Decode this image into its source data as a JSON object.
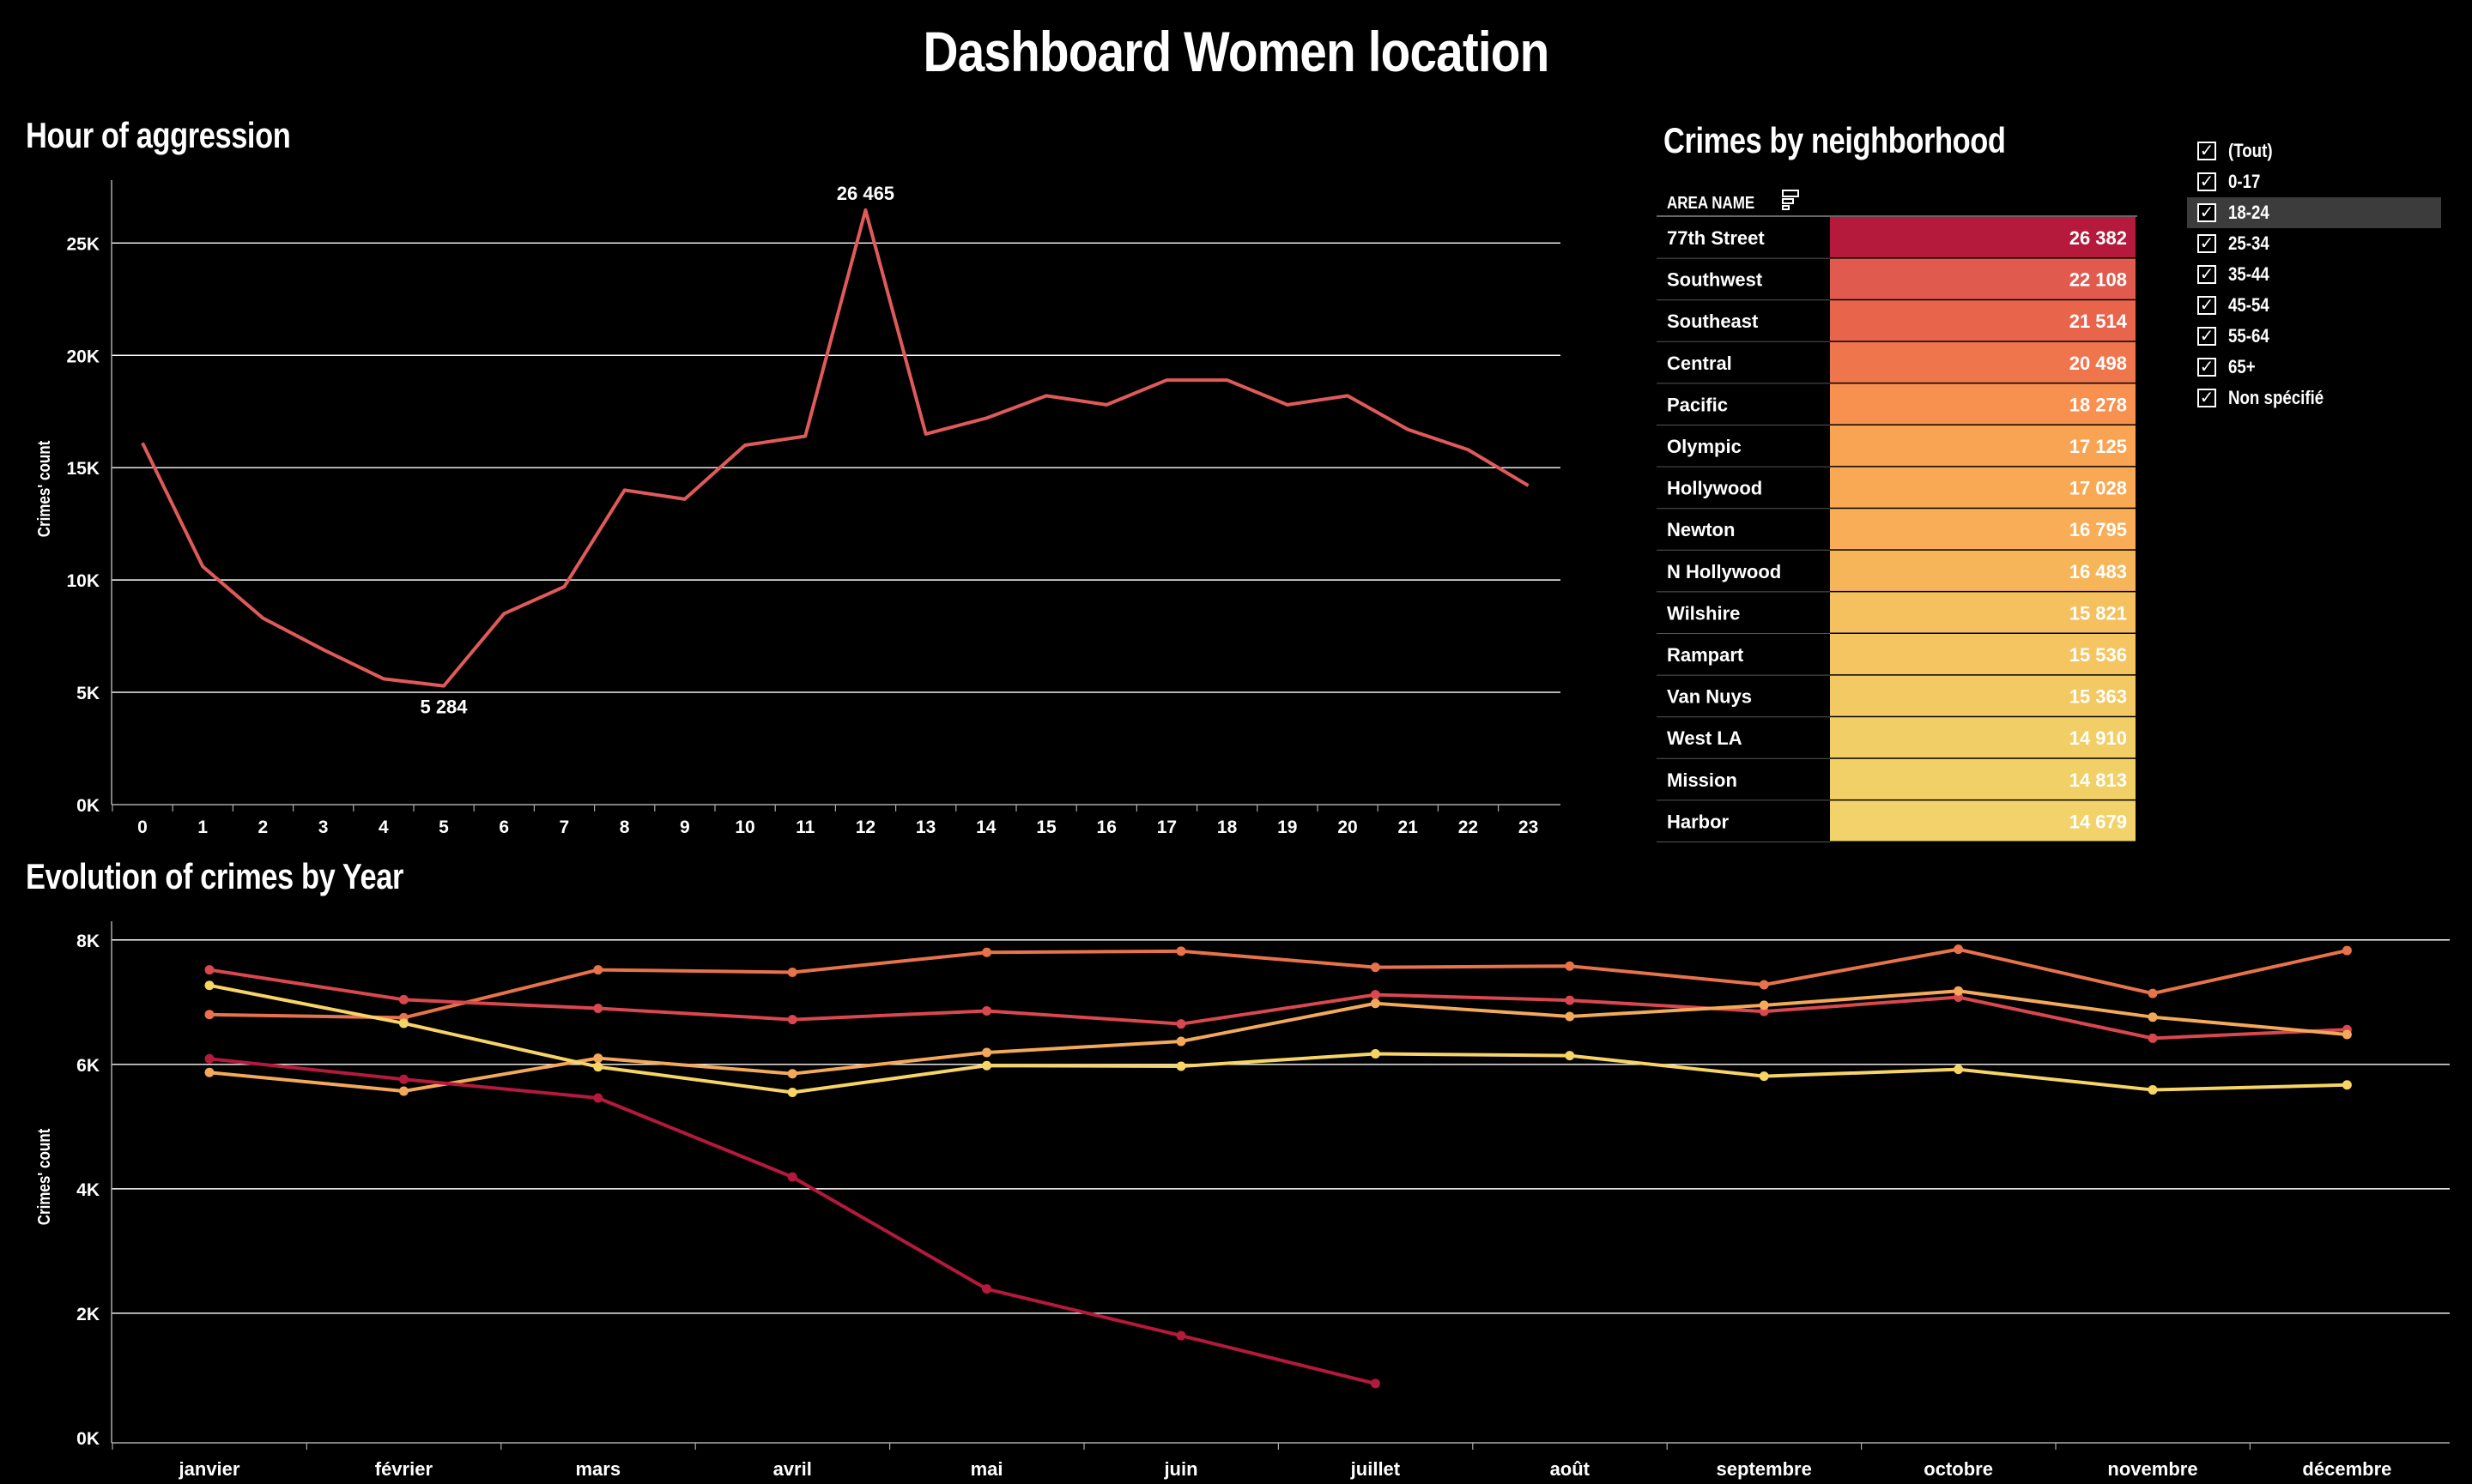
{
  "title": "Dashboard Women location",
  "hour_chart": {
    "title": "Hour of aggression",
    "chart_data": {
      "type": "line",
      "title": "Hour of aggression",
      "ylabel": "Crimes' count",
      "xlabel": "",
      "x": [
        0,
        1,
        2,
        3,
        4,
        5,
        6,
        7,
        8,
        9,
        10,
        11,
        12,
        13,
        14,
        15,
        16,
        17,
        18,
        19,
        20,
        21,
        22,
        23
      ],
      "y_ticks": [
        "0K",
        "5K",
        "10K",
        "15K",
        "20K",
        "25K"
      ],
      "ylim": [
        0,
        27800
      ],
      "series": [
        {
          "values": [
            16100,
            10600,
            8300,
            6900,
            5600,
            5284,
            8500,
            9700,
            14000,
            13600,
            16000,
            16400,
            26465,
            16500,
            17200,
            18200,
            17800,
            18900,
            18900,
            17800,
            18200,
            16700,
            15800,
            14200
          ]
        }
      ],
      "annotations": [
        {
          "x": 12,
          "label": "26 465"
        },
        {
          "x": 5,
          "label": "5 284"
        }
      ],
      "grid": true,
      "color": "#e05a5a"
    }
  },
  "neighborhood": {
    "title": "Crimes by neighborhood",
    "column_header": "AREA NAME",
    "chart_data": {
      "type": "table",
      "categories": [
        "77th Street",
        "Southwest",
        "Southeast",
        "Central",
        "Pacific",
        "Olympic",
        "Hollywood",
        "Newton",
        "N Hollywood",
        "Wilshire",
        "Rampart",
        "Van Nuys",
        "West LA",
        "Mission",
        "Harbor"
      ],
      "values": [
        26382,
        22108,
        21514,
        20498,
        18278,
        17125,
        17028,
        16795,
        16483,
        15821,
        15536,
        15363,
        14910,
        14813,
        14679
      ],
      "labels": [
        "26 382",
        "22 108",
        "21 514",
        "20 498",
        "18 278",
        "17 125",
        "17 028",
        "16 795",
        "16 483",
        "15 821",
        "15 536",
        "15 363",
        "14 910",
        "14 813",
        "14 679"
      ],
      "colors": [
        "#b5193c",
        "#e05a4e",
        "#e8654c",
        "#ef754c",
        "#f8904f",
        "#f8a453",
        "#f9a854",
        "#f9ad56",
        "#f7b559",
        "#f5c05e",
        "#f4c561",
        "#f3c963",
        "#f2ce66",
        "#f2d068",
        "#f2d36b"
      ]
    }
  },
  "filter": {
    "items": [
      {
        "label": "(Tout)",
        "checked": true,
        "highlighted": false
      },
      {
        "label": "0-17",
        "checked": true,
        "highlighted": false
      },
      {
        "label": "18-24",
        "checked": true,
        "highlighted": true
      },
      {
        "label": "25-34",
        "checked": true,
        "highlighted": false
      },
      {
        "label": "35-44",
        "checked": true,
        "highlighted": false
      },
      {
        "label": "45-54",
        "checked": true,
        "highlighted": false
      },
      {
        "label": "55-64",
        "checked": true,
        "highlighted": false
      },
      {
        "label": "65+",
        "checked": true,
        "highlighted": false
      },
      {
        "label": "Non spécifié",
        "checked": true,
        "highlighted": false
      }
    ]
  },
  "year_chart": {
    "title": "Evolution of crimes by Year",
    "chart_data": {
      "type": "line",
      "title": "Evolution of crimes by Year",
      "ylabel": "Crimes' count",
      "categories": [
        "janvier",
        "février",
        "mars",
        "avril",
        "mai",
        "juin",
        "juillet",
        "août",
        "septembre",
        "octobre",
        "novembre",
        "décembre"
      ],
      "y_ticks": [
        "0K",
        "2K",
        "4K",
        "6K",
        "8K"
      ],
      "ylim": [
        0,
        8300
      ],
      "grid": true,
      "series": [
        {
          "color": "#e8734a",
          "values": [
            6800,
            6750,
            7520,
            7480,
            7800,
            7820,
            7560,
            7580,
            7280,
            7850,
            7140,
            7830
          ]
        },
        {
          "color": "#d9474f",
          "values": [
            7520,
            7040,
            6900,
            6720,
            6860,
            6650,
            7120,
            7030,
            6850,
            7080,
            6420,
            6560
          ]
        },
        {
          "color": "#f4a95a",
          "values": [
            5870,
            5570,
            6100,
            5850,
            6190,
            6370,
            6980,
            6770,
            6950,
            7180,
            6760,
            6480
          ]
        },
        {
          "color": "#f7d466",
          "values": [
            7270,
            6660,
            5960,
            5550,
            5980,
            5970,
            6170,
            6140,
            5810,
            5920,
            5590,
            5670
          ]
        },
        {
          "color": "#b5193c",
          "values": [
            6090,
            5760,
            5460,
            4190,
            2390,
            1640,
            870,
            null,
            null,
            null,
            null,
            null
          ]
        }
      ]
    }
  }
}
